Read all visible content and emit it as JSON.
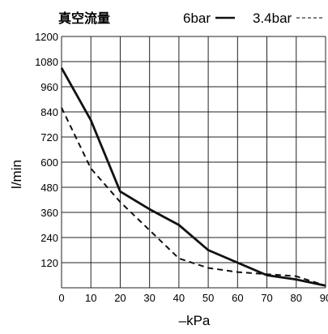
{
  "chart_data": {
    "type": "line",
    "title": "真空流量",
    "xlabel": "–kPa",
    "ylabel": "l/min",
    "xlim": [
      0,
      90
    ],
    "ylim": [
      0,
      1200
    ],
    "x_ticks": [
      0,
      10,
      20,
      30,
      40,
      50,
      60,
      70,
      80,
      90
    ],
    "y_ticks": [
      120,
      240,
      360,
      480,
      600,
      720,
      840,
      960,
      1080,
      1200
    ],
    "grid": true,
    "legend_position": "top-right",
    "series": [
      {
        "name": "6bar",
        "style": "solid",
        "color": "#111111",
        "x": [
          0,
          10,
          20,
          30,
          40,
          50,
          60,
          70,
          80,
          90
        ],
        "values": [
          1050,
          800,
          460,
          375,
          300,
          180,
          120,
          60,
          40,
          10
        ]
      },
      {
        "name": "3.4bar",
        "style": "dashed",
        "color": "#111111",
        "x": [
          0,
          10,
          20,
          30,
          40,
          50,
          60,
          70,
          80,
          90
        ],
        "values": [
          860,
          570,
          410,
          275,
          140,
          95,
          75,
          65,
          55,
          10
        ]
      }
    ]
  }
}
